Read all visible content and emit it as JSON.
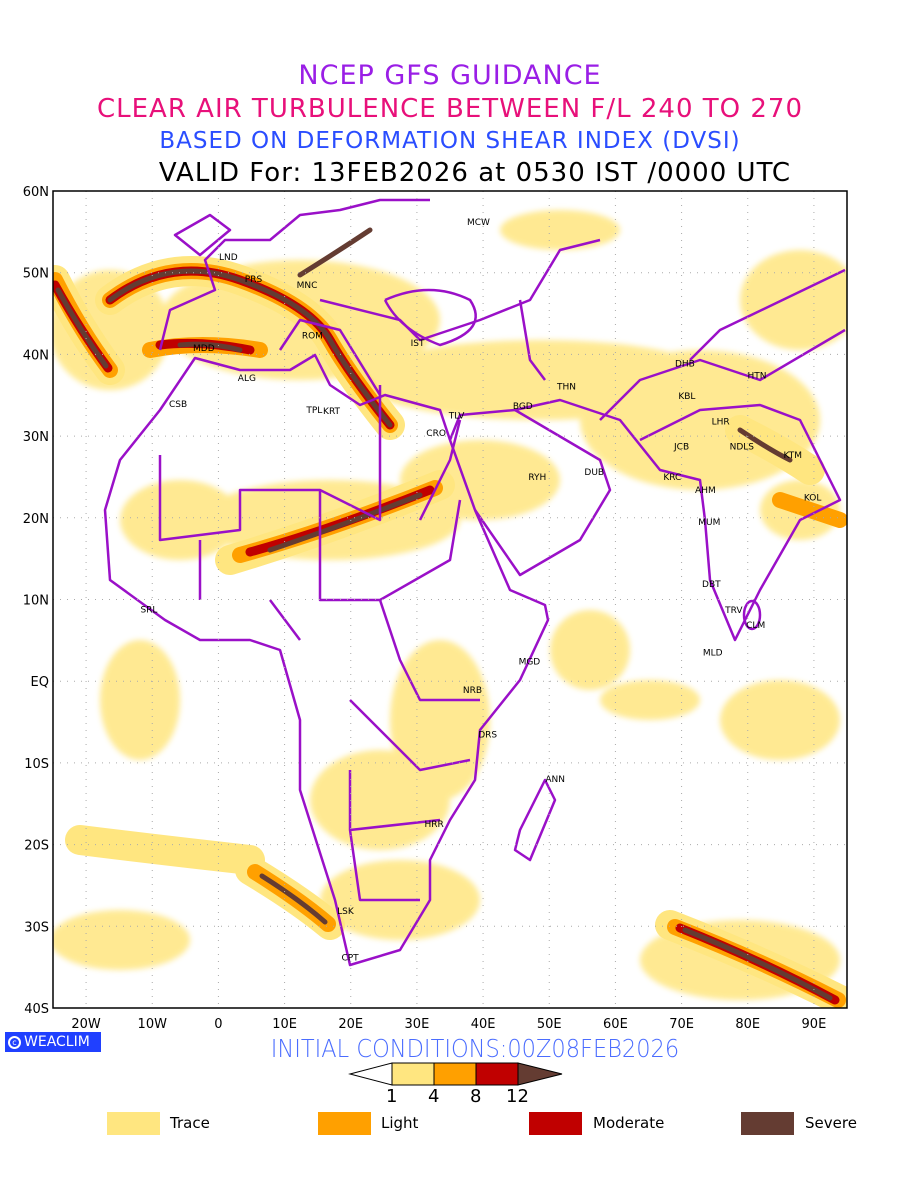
{
  "header": {
    "line1": "NCEP GFS GUIDANCE",
    "line2": "CLEAR AIR TURBULENCE BETWEEN F/L 240 TO 270",
    "line3": "BASED ON DEFORMATION SHEAR INDEX (DVSI)",
    "line4": "VALID For: 13FEB2026 at 0530 IST /0000 UTC"
  },
  "map": {
    "lon_range": [
      -25,
      95
    ],
    "lat_range": [
      -40,
      60
    ],
    "lat_ticks": [
      {
        "v": 60,
        "l": "60N"
      },
      {
        "v": 50,
        "l": "50N"
      },
      {
        "v": 40,
        "l": "40N"
      },
      {
        "v": 30,
        "l": "30N"
      },
      {
        "v": 20,
        "l": "20N"
      },
      {
        "v": 10,
        "l": "10N"
      },
      {
        "v": 0,
        "l": "EQ"
      },
      {
        "v": -10,
        "l": "10S"
      },
      {
        "v": -20,
        "l": "20S"
      },
      {
        "v": -30,
        "l": "30S"
      },
      {
        "v": -40,
        "l": "40S"
      }
    ],
    "lon_ticks": [
      {
        "v": -20,
        "l": "20W"
      },
      {
        "v": -10,
        "l": "10W"
      },
      {
        "v": 0,
        "l": "0"
      },
      {
        "v": 10,
        "l": "10E"
      },
      {
        "v": 20,
        "l": "20E"
      },
      {
        "v": 30,
        "l": "30E"
      },
      {
        "v": 40,
        "l": "40E"
      },
      {
        "v": 50,
        "l": "50E"
      },
      {
        "v": 60,
        "l": "60E"
      },
      {
        "v": 70,
        "l": "70E"
      },
      {
        "v": 80,
        "l": "80E"
      },
      {
        "v": 90,
        "l": "90E"
      }
    ],
    "cities": [
      {
        "n": "MCW",
        "lon": 39.3,
        "lat": 56.2
      },
      {
        "n": "LND",
        "lon": 1.5,
        "lat": 51.9
      },
      {
        "n": "PRS",
        "lon": 5.3,
        "lat": 49.2
      },
      {
        "n": "MNC",
        "lon": 13.4,
        "lat": 48.5
      },
      {
        "n": "ROM",
        "lon": 14.2,
        "lat": 42.3
      },
      {
        "n": "MDD",
        "lon": -2.2,
        "lat": 40.8
      },
      {
        "n": "IST",
        "lon": 30.1,
        "lat": 41.4
      },
      {
        "n": "ALG",
        "lon": 4.3,
        "lat": 37.1
      },
      {
        "n": "CSB",
        "lon": -6.1,
        "lat": 33.9
      },
      {
        "n": "TPL",
        "lon": 14.5,
        "lat": 33.2
      },
      {
        "n": "KRT",
        "lon": 17.1,
        "lat": 33.1
      },
      {
        "n": "TLV",
        "lon": 36.0,
        "lat": 32.5
      },
      {
        "n": "CRO",
        "lon": 32.9,
        "lat": 30.4
      },
      {
        "n": "BGD",
        "lon": 46.0,
        "lat": 33.7
      },
      {
        "n": "THN",
        "lon": 52.6,
        "lat": 36.1
      },
      {
        "n": "DHB",
        "lon": 70.5,
        "lat": 38.9
      },
      {
        "n": "HTN",
        "lon": 81.4,
        "lat": 37.4
      },
      {
        "n": "KBL",
        "lon": 70.8,
        "lat": 34.9
      },
      {
        "n": "LHR",
        "lon": 75.9,
        "lat": 31.8
      },
      {
        "n": "JCB",
        "lon": 70.0,
        "lat": 28.7
      },
      {
        "n": "NDLS",
        "lon": 79.1,
        "lat": 28.7
      },
      {
        "n": "KTM",
        "lon": 86.8,
        "lat": 27.7
      },
      {
        "n": "RYH",
        "lon": 48.2,
        "lat": 25.0
      },
      {
        "n": "DUB",
        "lon": 56.8,
        "lat": 25.6
      },
      {
        "n": "KRC",
        "lon": 68.6,
        "lat": 25.0
      },
      {
        "n": "AHM",
        "lon": 73.6,
        "lat": 23.4
      },
      {
        "n": "KOL",
        "lon": 89.8,
        "lat": 22.5
      },
      {
        "n": "MUM",
        "lon": 74.2,
        "lat": 19.5
      },
      {
        "n": "DBT",
        "lon": 74.5,
        "lat": 11.9
      },
      {
        "n": "TRV",
        "lon": 77.9,
        "lat": 8.7
      },
      {
        "n": "CLM",
        "lon": 81.2,
        "lat": 6.9
      },
      {
        "n": "MLD",
        "lon": 74.7,
        "lat": 3.5
      },
      {
        "n": "SRL",
        "lon": -10.5,
        "lat": 8.8
      },
      {
        "n": "MGD",
        "lon": 47.0,
        "lat": 2.4
      },
      {
        "n": "NRB",
        "lon": 38.4,
        "lat": -1.1
      },
      {
        "n": "DRS",
        "lon": 40.7,
        "lat": -6.5
      },
      {
        "n": "ANN",
        "lon": 50.9,
        "lat": -12.0
      },
      {
        "n": "HRR",
        "lon": 32.6,
        "lat": -17.5
      },
      {
        "n": "LSK",
        "lon": 19.2,
        "lat": -28.1
      },
      {
        "n": "CPT",
        "lon": 19.9,
        "lat": -33.8
      }
    ]
  },
  "footer": {
    "brand": "WEACLIM",
    "brand_icon": "copyright-icon",
    "initial_conditions": "INITIAL CONDITIONS:00Z08FEB2026"
  },
  "colorbar": {
    "colors": [
      "#ffe680",
      "#ffa000",
      "#c00000",
      "#643c32"
    ],
    "labels": [
      "1",
      "4",
      "8",
      "12"
    ]
  },
  "legend": [
    {
      "label": "Trace",
      "color": "#ffe680"
    },
    {
      "label": "Light",
      "color": "#ffa000"
    },
    {
      "label": "Moderate",
      "color": "#c00000"
    },
    {
      "label": "Severe",
      "color": "#643c32"
    }
  ],
  "colors": {
    "border": "#9a10c8",
    "title1": "#9a1ee6",
    "title2": "#e8107a",
    "title3": "#2a4dff"
  }
}
